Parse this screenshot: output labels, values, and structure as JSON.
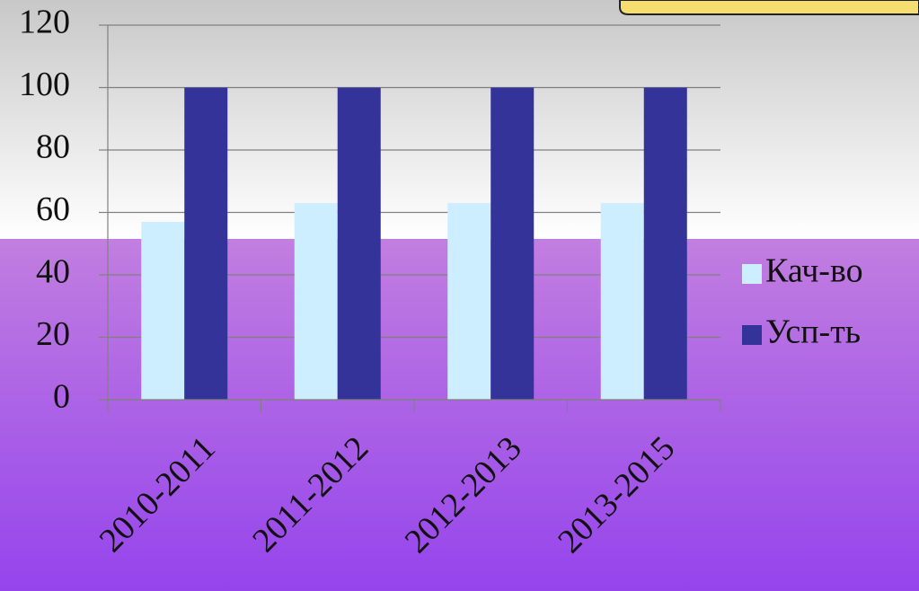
{
  "chart_data": {
    "type": "bar",
    "categories": [
      "2010-2011",
      "2011-2012",
      "2012-2013",
      "2013-2015"
    ],
    "series": [
      {
        "name": "Кач-во",
        "color": "#cceeff",
        "values": [
          57,
          63,
          63,
          63
        ]
      },
      {
        "name": "Усп-ть",
        "color": "#333399",
        "values": [
          100,
          100,
          100,
          100
        ]
      }
    ],
    "ylim": [
      0,
      120
    ],
    "yticks": [
      0,
      20,
      40,
      60,
      80,
      100,
      120
    ],
    "grid": true,
    "legend": "right"
  }
}
